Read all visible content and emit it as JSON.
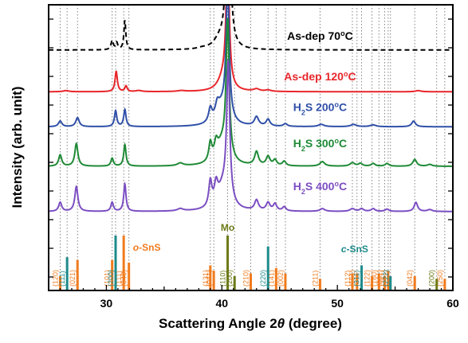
{
  "chart_data": {
    "type": "line",
    "xlabel_parts": [
      "Scattering Angle 2",
      "θ",
      " (degree)"
    ],
    "ylabel": "Intensity (arb. unit)",
    "xlim": [
      25,
      60
    ],
    "xticks": [
      30,
      40,
      50,
      60
    ],
    "grid": "vertical dotted lines at reference peak positions",
    "series": [
      {
        "name_parts": [
          "As-dep 70",
          "o",
          "C"
        ],
        "color": "#000000",
        "dashed": true,
        "baseline": 0.8,
        "label_x": 48.5,
        "label_y": 0.845,
        "peaks": [
          [
            30.5,
            0.04,
            0.12
          ],
          [
            31.6,
            0.13,
            0.1
          ],
          [
            30.9,
            0.03,
            0.1
          ],
          [
            38.3,
            0.005,
            0.5
          ],
          [
            40.55,
            0.9,
            0.18
          ],
          [
            39.8,
            0.04,
            0.6
          ]
        ]
      },
      {
        "name_parts": [
          "As-dep 120",
          "o",
          "C"
        ],
        "color": "#e8262b",
        "baseline": 0.615,
        "label_x": 48.5,
        "label_y": 0.665,
        "peaks": [
          [
            30.85,
            0.09,
            0.12
          ],
          [
            31.7,
            0.025,
            0.12
          ],
          [
            26.5,
            0.005,
            0.3
          ],
          [
            32.8,
            0.005,
            0.3
          ],
          [
            36.5,
            0.004,
            0.4
          ],
          [
            40.5,
            0.6,
            0.16
          ],
          [
            40.1,
            0.05,
            0.55
          ],
          [
            43.0,
            0.01,
            0.3
          ],
          [
            44.0,
            0.006,
            0.3
          ],
          [
            57.0,
            0.005,
            0.3
          ]
        ]
      },
      {
        "name_parts": [
          "H",
          "2",
          "S 200",
          "o",
          "C"
        ],
        "color": "#3050a8",
        "baseline": 0.46,
        "label_x": 48.5,
        "label_y": 0.53,
        "peaks": [
          [
            26.0,
            0.025,
            0.18
          ],
          [
            27.5,
            0.04,
            0.18
          ],
          [
            30.8,
            0.07,
            0.12
          ],
          [
            31.6,
            0.075,
            0.12
          ],
          [
            39.0,
            0.06,
            0.18
          ],
          [
            39.6,
            0.05,
            0.2
          ],
          [
            40.5,
            0.6,
            0.16
          ],
          [
            40.0,
            0.08,
            0.6
          ],
          [
            43.0,
            0.04,
            0.22
          ],
          [
            44.0,
            0.03,
            0.2
          ],
          [
            45.5,
            0.012,
            0.2
          ],
          [
            48.6,
            0.01,
            0.3
          ],
          [
            51.4,
            0.01,
            0.3
          ],
          [
            53.1,
            0.008,
            0.3
          ],
          [
            56.6,
            0.025,
            0.2
          ]
        ]
      },
      {
        "name_parts": [
          "H",
          "2",
          "S 300",
          "o",
          "C"
        ],
        "color": "#1f8a36",
        "baseline": 0.285,
        "label_x": 48.5,
        "label_y": 0.37,
        "peaks": [
          [
            26.0,
            0.05,
            0.16
          ],
          [
            27.4,
            0.1,
            0.16
          ],
          [
            30.5,
            0.035,
            0.13
          ],
          [
            31.6,
            0.095,
            0.12
          ],
          [
            36.4,
            0.012,
            0.3
          ],
          [
            39.0,
            0.08,
            0.16
          ],
          [
            39.5,
            0.06,
            0.18
          ],
          [
            40.5,
            0.6,
            0.16
          ],
          [
            40.0,
            0.09,
            0.6
          ],
          [
            43.0,
            0.06,
            0.2
          ],
          [
            44.0,
            0.04,
            0.2
          ],
          [
            44.6,
            0.025,
            0.18
          ],
          [
            45.4,
            0.02,
            0.18
          ],
          [
            48.7,
            0.02,
            0.25
          ],
          [
            51.3,
            0.015,
            0.25
          ],
          [
            52.0,
            0.012,
            0.2
          ],
          [
            53.1,
            0.012,
            0.2
          ],
          [
            54.3,
            0.012,
            0.2
          ],
          [
            56.7,
            0.03,
            0.2
          ],
          [
            58.0,
            0.008,
            0.25
          ]
        ]
      },
      {
        "name_parts": [
          "H",
          "2",
          "S 400",
          "o",
          "C"
        ],
        "color": "#7b4ec2",
        "baseline": 0.085,
        "label_x": 48.5,
        "label_y": 0.18,
        "peaks": [
          [
            26.0,
            0.04,
            0.16
          ],
          [
            27.4,
            0.11,
            0.16
          ],
          [
            30.5,
            0.04,
            0.13
          ],
          [
            31.6,
            0.12,
            0.12
          ],
          [
            36.4,
            0.01,
            0.3
          ],
          [
            39.0,
            0.11,
            0.16
          ],
          [
            39.5,
            0.08,
            0.18
          ],
          [
            40.55,
            0.6,
            0.16
          ],
          [
            40.1,
            0.1,
            0.6
          ],
          [
            43.0,
            0.045,
            0.2
          ],
          [
            44.0,
            0.035,
            0.2
          ],
          [
            44.6,
            0.03,
            0.18
          ],
          [
            45.4,
            0.018,
            0.18
          ],
          [
            48.7,
            0.012,
            0.25
          ],
          [
            51.3,
            0.012,
            0.25
          ],
          [
            52.1,
            0.012,
            0.2
          ],
          [
            53.1,
            0.012,
            0.2
          ],
          [
            54.3,
            0.01,
            0.2
          ],
          [
            56.8,
            0.04,
            0.18
          ],
          [
            58.0,
            0.008,
            0.25
          ]
        ]
      }
    ],
    "references": {
      "o_sns": {
        "title_parts": [
          "o",
          "-SnS"
        ],
        "title_x": 33.5,
        "color": "#f07b1e",
        "peaks": [
          {
            "x": 26.0,
            "h": 0.25,
            "label": "(120)"
          },
          {
            "x": 27.5,
            "h": 0.55,
            "label": "(021)"
          },
          {
            "x": 30.5,
            "h": 0.55,
            "label": "(101)"
          },
          {
            "x": 31.5,
            "h": 1.0,
            "label": "(111)"
          },
          {
            "x": 31.95,
            "h": 0.5,
            "label": "(040)"
          },
          {
            "x": 39.0,
            "h": 0.45,
            "label": "(131)"
          },
          {
            "x": 39.3,
            "h": 0.35,
            "label": "(041)"
          },
          {
            "x": 42.5,
            "h": 0.3,
            "label": "(210)"
          },
          {
            "x": 44.7,
            "h": 0.4,
            "label": "(141)"
          },
          {
            "x": 45.5,
            "h": 0.3,
            "label": "(002)"
          },
          {
            "x": 48.5,
            "h": 0.2,
            "label": "(211)"
          },
          {
            "x": 51.3,
            "h": 0.3,
            "label": "(112)"
          },
          {
            "x": 51.7,
            "h": 0.3,
            "label": "(151)"
          },
          {
            "x": 53.0,
            "h": 0.25,
            "label": "(122)"
          },
          {
            "x": 53.6,
            "h": 0.3,
            "label": "(160)"
          },
          {
            "x": 54.1,
            "h": 0.25,
            "label": "(061)"
          },
          {
            "x": 54.4,
            "h": 0.35,
            "label": "(251)"
          },
          {
            "x": 56.7,
            "h": 0.25,
            "label": "(042)"
          },
          {
            "x": 59.3,
            "h": 0.2,
            "label": "(250)"
          }
        ]
      },
      "c_sns": {
        "title_parts": [
          "c",
          "-SnS"
        ],
        "title_x": 51.5,
        "color": "#1e8a8a",
        "peaks": [
          {
            "x": 26.6,
            "h": 0.6,
            "label": "(111)"
          },
          {
            "x": 30.8,
            "h": 1.0,
            "label": "(200)"
          },
          {
            "x": 44.0,
            "h": 0.8,
            "label": "(220)"
          },
          {
            "x": 52.1,
            "h": 0.45,
            "label": "(311)"
          },
          {
            "x": 54.6,
            "h": 0.25,
            "label": "(222)"
          }
        ]
      },
      "mo": {
        "title": "Mo",
        "title_x": 40.5,
        "color": "#6d7a18",
        "peaks": [
          {
            "x": 40.5,
            "h": 1.0,
            "label": "(110)"
          },
          {
            "x": 41.1,
            "h": 0.25,
            "label": "(200)"
          },
          {
            "x": 58.6,
            "h": 0.2,
            "label": "(200)"
          }
        ]
      }
    }
  }
}
